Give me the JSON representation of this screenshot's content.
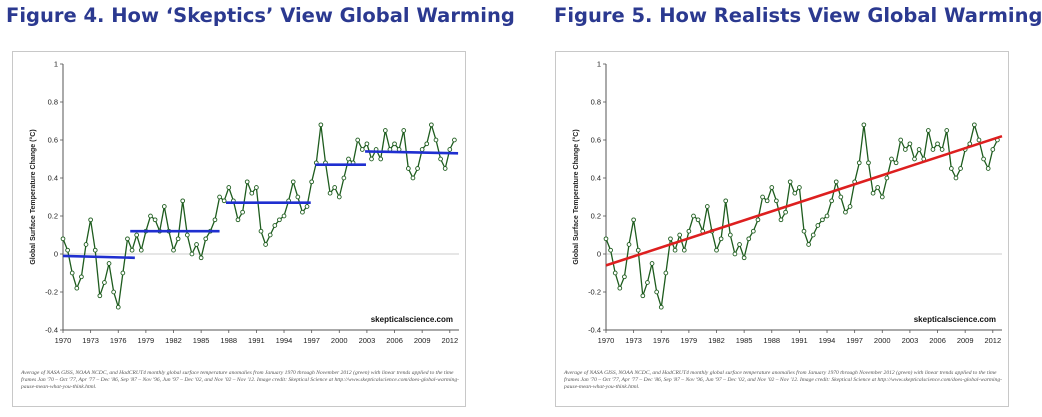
{
  "figures": [
    {
      "title": "Figure 4. How ‘Skeptics’ View Global Warming",
      "caption": "Average of NASA GISS, NOAA NCDC, and HadCRUT4 monthly global surface temperature anomalies from January 1970 through November 2012 (green) with linear trends applied to the time frames Jan '70 – Oct '77, Apr '77 – Dec '86, Sep '87 – Nov '96, Jun '97 – Dec '02, and Nov '02 – Nov '12. Image credit: Skeptical Science at http://www.skepticalscience.com/does-global-warming-pause-mean-what-you-think.html.",
      "credit": "skepticalscience.com"
    },
    {
      "title": "Figure 5. How Realists View Global Warming",
      "caption": "Average of NASA GISS, NOAA NCDC, and HadCRUT4 monthly global surface temperature anomalies from January 1970 through November 2012 (green) with linear trends applied to the time frames Jan '70 – Oct '77, Apr '77 – Dec '86, Sep '87 – Nov '96, Jun '97 – Dec '02, and Nov '02 – Nov '12. Image credit: Skeptical Science at http://www.skepticalscience.com/does-global-warming-pause-mean-what-you-think.html.",
      "credit": "skepticalscience.com"
    }
  ],
  "chart_data": [
    {
      "type": "line",
      "ylabel": "Global Surface Temperature Change (°C)",
      "xlim": [
        1970,
        2013
      ],
      "ylim": [
        -0.4,
        1
      ],
      "xticks": [
        1970,
        1973,
        1976,
        1979,
        1982,
        1985,
        1988,
        1991,
        1994,
        1997,
        2000,
        2003,
        2006,
        2009,
        2012
      ],
      "yticks": [
        -0.4,
        -0.2,
        0,
        0.2,
        0.4,
        0.6,
        0.8,
        1
      ],
      "grid": false,
      "colors": {
        "data": "#1e5c1e",
        "trend": "#1f2fd0"
      },
      "series": [
        {
          "x": [
            1970,
            1970.5,
            1971,
            1971.5,
            1972,
            1972.5,
            1973,
            1973.5,
            1974,
            1974.5,
            1975,
            1975.5,
            1976,
            1976.5,
            1977,
            1977.5,
            1978,
            1978.5,
            1979,
            1979.5,
            1980,
            1980.5,
            1981,
            1981.5,
            1982,
            1982.5,
            1983,
            1983.5,
            1984,
            1984.5,
            1985,
            1985.5,
            1986,
            1986.5,
            1987,
            1987.5,
            1988,
            1988.5,
            1989,
            1989.5,
            1990,
            1990.5,
            1991,
            1991.5,
            1992,
            1992.5,
            1993,
            1993.5,
            1994,
            1994.5,
            1995,
            1995.5,
            1996,
            1996.5,
            1997,
            1997.5,
            1998,
            1998.5,
            1999,
            1999.5,
            2000,
            2000.5,
            2001,
            2001.5,
            2002,
            2002.5,
            2003,
            2003.5,
            2004,
            2004.5,
            2005,
            2005.5,
            2006,
            2006.5,
            2007,
            2007.5,
            2008,
            2008.5,
            2009,
            2009.5,
            2010,
            2010.5,
            2011,
            2011.5,
            2012,
            2012.5
          ],
          "y": [
            0.08,
            0.02,
            -0.1,
            -0.18,
            -0.12,
            0.05,
            0.18,
            0.02,
            -0.22,
            -0.15,
            -0.05,
            -0.2,
            -0.28,
            -0.1,
            0.08,
            0.02,
            0.1,
            0.02,
            0.12,
            0.2,
            0.18,
            0.12,
            0.25,
            0.12,
            0.02,
            0.08,
            0.28,
            0.1,
            0.0,
            0.05,
            -0.02,
            0.08,
            0.12,
            0.18,
            0.3,
            0.28,
            0.35,
            0.28,
            0.18,
            0.22,
            0.38,
            0.32,
            0.35,
            0.12,
            0.05,
            0.1,
            0.15,
            0.18,
            0.2,
            0.28,
            0.38,
            0.3,
            0.22,
            0.25,
            0.38,
            0.48,
            0.68,
            0.48,
            0.32,
            0.35,
            0.3,
            0.4,
            0.5,
            0.48,
            0.6,
            0.55,
            0.58,
            0.5,
            0.55,
            0.5,
            0.65,
            0.55,
            0.58,
            0.55,
            0.65,
            0.45,
            0.4,
            0.45,
            0.55,
            0.58,
            0.68,
            0.6,
            0.5,
            0.45,
            0.55,
            0.6
          ]
        }
      ],
      "trends": [
        {
          "x": [
            1970,
            1977.8
          ],
          "y": [
            -0.01,
            -0.02
          ]
        },
        {
          "x": [
            1977.3,
            1987
          ],
          "y": [
            0.12,
            0.12
          ]
        },
        {
          "x": [
            1987.7,
            1996.9
          ],
          "y": [
            0.27,
            0.27
          ]
        },
        {
          "x": [
            1997.4,
            2002.9
          ],
          "y": [
            0.47,
            0.47
          ]
        },
        {
          "x": [
            2002.8,
            2012.9
          ],
          "y": [
            0.54,
            0.53
          ]
        }
      ]
    },
    {
      "type": "line",
      "ylabel": "Global Surface Temperature Change (°C)",
      "xlim": [
        1970,
        2013
      ],
      "ylim": [
        -0.4,
        1
      ],
      "xticks": [
        1970,
        1973,
        1976,
        1979,
        1982,
        1985,
        1988,
        1991,
        1994,
        1997,
        2000,
        2003,
        2006,
        2009,
        2012
      ],
      "yticks": [
        -0.4,
        -0.2,
        0,
        0.2,
        0.4,
        0.6,
        0.8,
        1
      ],
      "grid": false,
      "colors": {
        "data": "#1e5c1e",
        "trend": "#dd1f1f"
      },
      "series": [
        {
          "x": [
            1970,
            1970.5,
            1971,
            1971.5,
            1972,
            1972.5,
            1973,
            1973.5,
            1974,
            1974.5,
            1975,
            1975.5,
            1976,
            1976.5,
            1977,
            1977.5,
            1978,
            1978.5,
            1979,
            1979.5,
            1980,
            1980.5,
            1981,
            1981.5,
            1982,
            1982.5,
            1983,
            1983.5,
            1984,
            1984.5,
            1985,
            1985.5,
            1986,
            1986.5,
            1987,
            1987.5,
            1988,
            1988.5,
            1989,
            1989.5,
            1990,
            1990.5,
            1991,
            1991.5,
            1992,
            1992.5,
            1993,
            1993.5,
            1994,
            1994.5,
            1995,
            1995.5,
            1996,
            1996.5,
            1997,
            1997.5,
            1998,
            1998.5,
            1999,
            1999.5,
            2000,
            2000.5,
            2001,
            2001.5,
            2002,
            2002.5,
            2003,
            2003.5,
            2004,
            2004.5,
            2005,
            2005.5,
            2006,
            2006.5,
            2007,
            2007.5,
            2008,
            2008.5,
            2009,
            2009.5,
            2010,
            2010.5,
            2011,
            2011.5,
            2012,
            2012.5
          ],
          "y": [
            0.08,
            0.02,
            -0.1,
            -0.18,
            -0.12,
            0.05,
            0.18,
            0.02,
            -0.22,
            -0.15,
            -0.05,
            -0.2,
            -0.28,
            -0.1,
            0.08,
            0.02,
            0.1,
            0.02,
            0.12,
            0.2,
            0.18,
            0.12,
            0.25,
            0.12,
            0.02,
            0.08,
            0.28,
            0.1,
            0.0,
            0.05,
            -0.02,
            0.08,
            0.12,
            0.18,
            0.3,
            0.28,
            0.35,
            0.28,
            0.18,
            0.22,
            0.38,
            0.32,
            0.35,
            0.12,
            0.05,
            0.1,
            0.15,
            0.18,
            0.2,
            0.28,
            0.38,
            0.3,
            0.22,
            0.25,
            0.38,
            0.48,
            0.68,
            0.48,
            0.32,
            0.35,
            0.3,
            0.4,
            0.5,
            0.48,
            0.6,
            0.55,
            0.58,
            0.5,
            0.55,
            0.5,
            0.65,
            0.55,
            0.58,
            0.55,
            0.65,
            0.45,
            0.4,
            0.45,
            0.55,
            0.58,
            0.68,
            0.6,
            0.5,
            0.45,
            0.55,
            0.6
          ]
        }
      ],
      "trends": [
        {
          "x": [
            1970,
            2013
          ],
          "y": [
            -0.06,
            0.62
          ]
        }
      ]
    }
  ]
}
